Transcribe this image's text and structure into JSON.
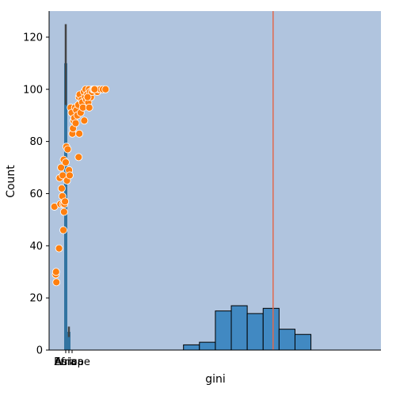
{
  "chart_data": {
    "type": "bar",
    "title": "",
    "xlabel": "gini",
    "ylabel": "Count",
    "ylim": [
      0,
      130
    ],
    "yticks": [
      0,
      20,
      40,
      60,
      80,
      100,
      120
    ],
    "xticks": [
      "Asia",
      "Africa",
      "Europe"
    ],
    "background_color": "#b0c4de",
    "bar_color": "#4189c2",
    "scatter_color": "#ff7f0e",
    "vline_color": "#e06a4e",
    "grid": false,
    "histogram": {
      "x_range": [
        0,
        100
      ],
      "bin_edges": [
        40.5,
        45.3,
        50.1,
        54.9,
        59.7,
        64.5,
        69.3,
        74.1,
        78.9
      ],
      "counts": [
        2,
        3,
        15,
        17,
        14,
        16,
        8,
        6
      ]
    },
    "categorical_bars": [
      {
        "category": "Asia",
        "value": 110,
        "error": [
          94,
          125
        ]
      },
      {
        "category": "Africa",
        "value": 7,
        "error": [
          5,
          9
        ]
      },
      {
        "category": "Europe",
        "value": 0,
        "error": [
          0,
          0
        ]
      }
    ],
    "vline": {
      "x": 67.5
    },
    "scatter": {
      "x": [
        1.6,
        2.0,
        2.1,
        2.2,
        3.0,
        3.2,
        3.4,
        3.6,
        3.8,
        4.0,
        4.1,
        4.2,
        4.3,
        4.4,
        4.5,
        4.6,
        4.8,
        5.0,
        5.2,
        5.4,
        5.6,
        6.0,
        6.2,
        6.5,
        6.8,
        7.0,
        7.2,
        7.4,
        7.6,
        7.8,
        8.0,
        8.2,
        8.5,
        8.8,
        9.0,
        9.2,
        9.5,
        9.8,
        10.0,
        10.2,
        10.5,
        10.8,
        11.0,
        11.2,
        11.5,
        11.8,
        12.0,
        12.3,
        12.6,
        12.9,
        13.2,
        13.5,
        14.0,
        14.5,
        15.0,
        15.5,
        16.2,
        17.0,
        8.9,
        10.6,
        11.6,
        13.7,
        9.1,
        12.1
      ],
      "y": [
        55,
        29,
        30,
        26,
        39,
        66,
        56,
        70,
        62,
        59,
        67,
        56,
        46,
        73,
        53,
        56,
        57,
        72,
        78,
        65,
        77,
        69,
        67,
        93,
        91,
        83,
        85,
        88,
        89,
        93,
        87,
        92,
        90,
        94,
        97,
        98,
        91,
        96,
        95,
        93,
        99,
        97,
        100,
        96,
        98,
        95,
        100,
        99,
        97,
        99,
        100,
        100,
        100,
        99,
        100,
        100,
        100,
        100,
        74,
        88,
        97,
        100,
        83,
        93
      ]
    }
  }
}
